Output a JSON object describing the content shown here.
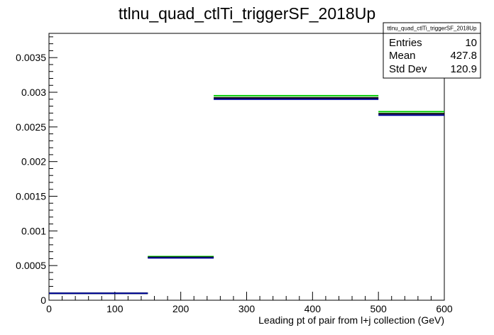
{
  "chart_data": {
    "type": "histogram",
    "title": "ttlnu_quad_ctlTi_triggerSF_2018Up",
    "xlabel": "Leading pt of pair from l+j collection (GeV)",
    "ylabel": "",
    "xlim": [
      0,
      600
    ],
    "ylim": [
      0,
      0.00385
    ],
    "grid": false,
    "x_ticks": [
      0,
      100,
      200,
      300,
      400,
      500,
      600
    ],
    "x_tick_labels": [
      "0",
      "100",
      "200",
      "300",
      "400",
      "500",
      "600"
    ],
    "y_ticks": [
      0,
      0.0005,
      0.001,
      0.0015,
      0.002,
      0.0025,
      0.003,
      0.0035
    ],
    "y_tick_labels": [
      "0",
      "0.0005",
      "0.001",
      "0.0015",
      "0.002",
      "0.0025",
      "0.003",
      "0.0035"
    ],
    "bin_edges": [
      0,
      150,
      250,
      500,
      600
    ],
    "series": [
      {
        "color": "#00cc00",
        "values": [
          0.0001,
          0.00063,
          0.00295,
          0.00272
        ]
      },
      {
        "color": "#000000",
        "values": [
          0.0001,
          0.00062,
          0.00292,
          0.00269
        ]
      },
      {
        "color": "#000099",
        "values": [
          0.0001,
          0.00061,
          0.0029,
          0.00267
        ]
      }
    ],
    "stats_box": {
      "title": "ttlnu_quad_ctlTi_triggerSF_2018Up",
      "rows": [
        {
          "label": "Entries",
          "value": "10"
        },
        {
          "label": "Mean",
          "value": "427.8"
        },
        {
          "label": "Std Dev",
          "value": "120.9"
        }
      ]
    }
  }
}
